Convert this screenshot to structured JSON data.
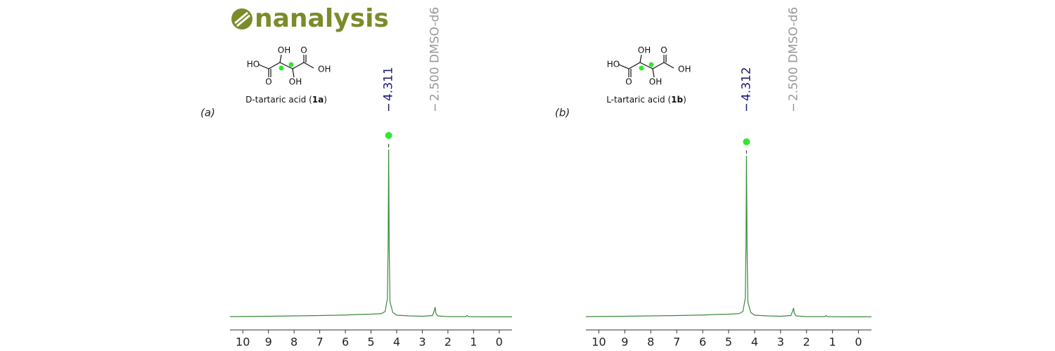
{
  "logo": "nanalysis",
  "chart_data": [
    {
      "type": "line",
      "panel_label": "(a)",
      "structure": {
        "atoms": [
          "HO",
          "O",
          "OH",
          "OH",
          "O",
          "OH"
        ],
        "name_parts": [
          "D-tartaric acid (",
          "1a",
          ")"
        ]
      },
      "annotations": [
        {
          "x": 4.311,
          "label": "4.311",
          "color": "#1a1a6e"
        },
        {
          "x": 2.5,
          "label": "2.500 DMSO-d6",
          "color": "#999999"
        }
      ],
      "highlight_color": "#33e633",
      "series": [
        {
          "color": "#3a8a3a",
          "x": [
            10.5,
            9,
            8,
            7,
            6,
            5.5,
            5,
            4.6,
            4.45,
            4.36,
            4.33,
            4.311,
            4.29,
            4.26,
            4.15,
            4.0,
            3.5,
            3.0,
            2.6,
            2.53,
            2.5,
            2.47,
            2.4,
            2.0,
            1.3,
            1.25,
            1.2,
            0.5,
            -0.5
          ],
          "values": [
            1.6,
            1.8,
            2.0,
            2.2,
            2.5,
            2.8,
            3.0,
            3.3,
            4.5,
            12,
            45,
            96.8,
            40,
            10,
            4,
            2.4,
            2.0,
            1.8,
            2.2,
            5,
            7,
            3.5,
            2.0,
            1.6,
            1.6,
            2.2,
            1.6,
            1.5,
            1.5
          ]
        }
      ],
      "xlim": [
        10.5,
        -0.5
      ],
      "xticks": [
        10,
        9,
        8,
        7,
        6,
        5,
        4,
        3,
        2,
        1,
        0
      ],
      "ylim": [
        0,
        100
      ]
    },
    {
      "type": "line",
      "panel_label": "(b)",
      "structure": {
        "atoms": [
          "HO",
          "O",
          "OH",
          "OH",
          "O",
          "OH"
        ],
        "name_parts": [
          "L-tartaric acid  (",
          "1b",
          ")"
        ]
      },
      "annotations": [
        {
          "x": 4.312,
          "label": "4.312",
          "color": "#1a1a6e"
        },
        {
          "x": 2.5,
          "label": "2.500 DMSO-d6",
          "color": "#999999"
        }
      ],
      "highlight_color": "#33e633",
      "series": [
        {
          "color": "#3a8a3a",
          "x": [
            10.5,
            9,
            8,
            7,
            6,
            5.5,
            5,
            4.6,
            4.45,
            4.36,
            4.33,
            4.312,
            4.29,
            4.26,
            4.15,
            4.0,
            3.5,
            3.0,
            2.6,
            2.53,
            2.5,
            2.47,
            2.4,
            2.0,
            1.3,
            1.25,
            1.2,
            0.5,
            -0.5
          ],
          "values": [
            1.6,
            1.8,
            2.0,
            2.2,
            2.5,
            2.8,
            3.0,
            3.3,
            4.5,
            12,
            45,
            93.2,
            40,
            10,
            4,
            2.4,
            2.0,
            1.8,
            2.2,
            5,
            6.5,
            3.5,
            2.0,
            1.6,
            1.6,
            2.2,
            1.6,
            1.5,
            1.5
          ]
        }
      ],
      "xlim": [
        10.5,
        -0.5
      ],
      "xticks": [
        10,
        9,
        8,
        7,
        6,
        5,
        4,
        3,
        2,
        1,
        0
      ],
      "ylim": [
        0,
        100
      ]
    }
  ]
}
